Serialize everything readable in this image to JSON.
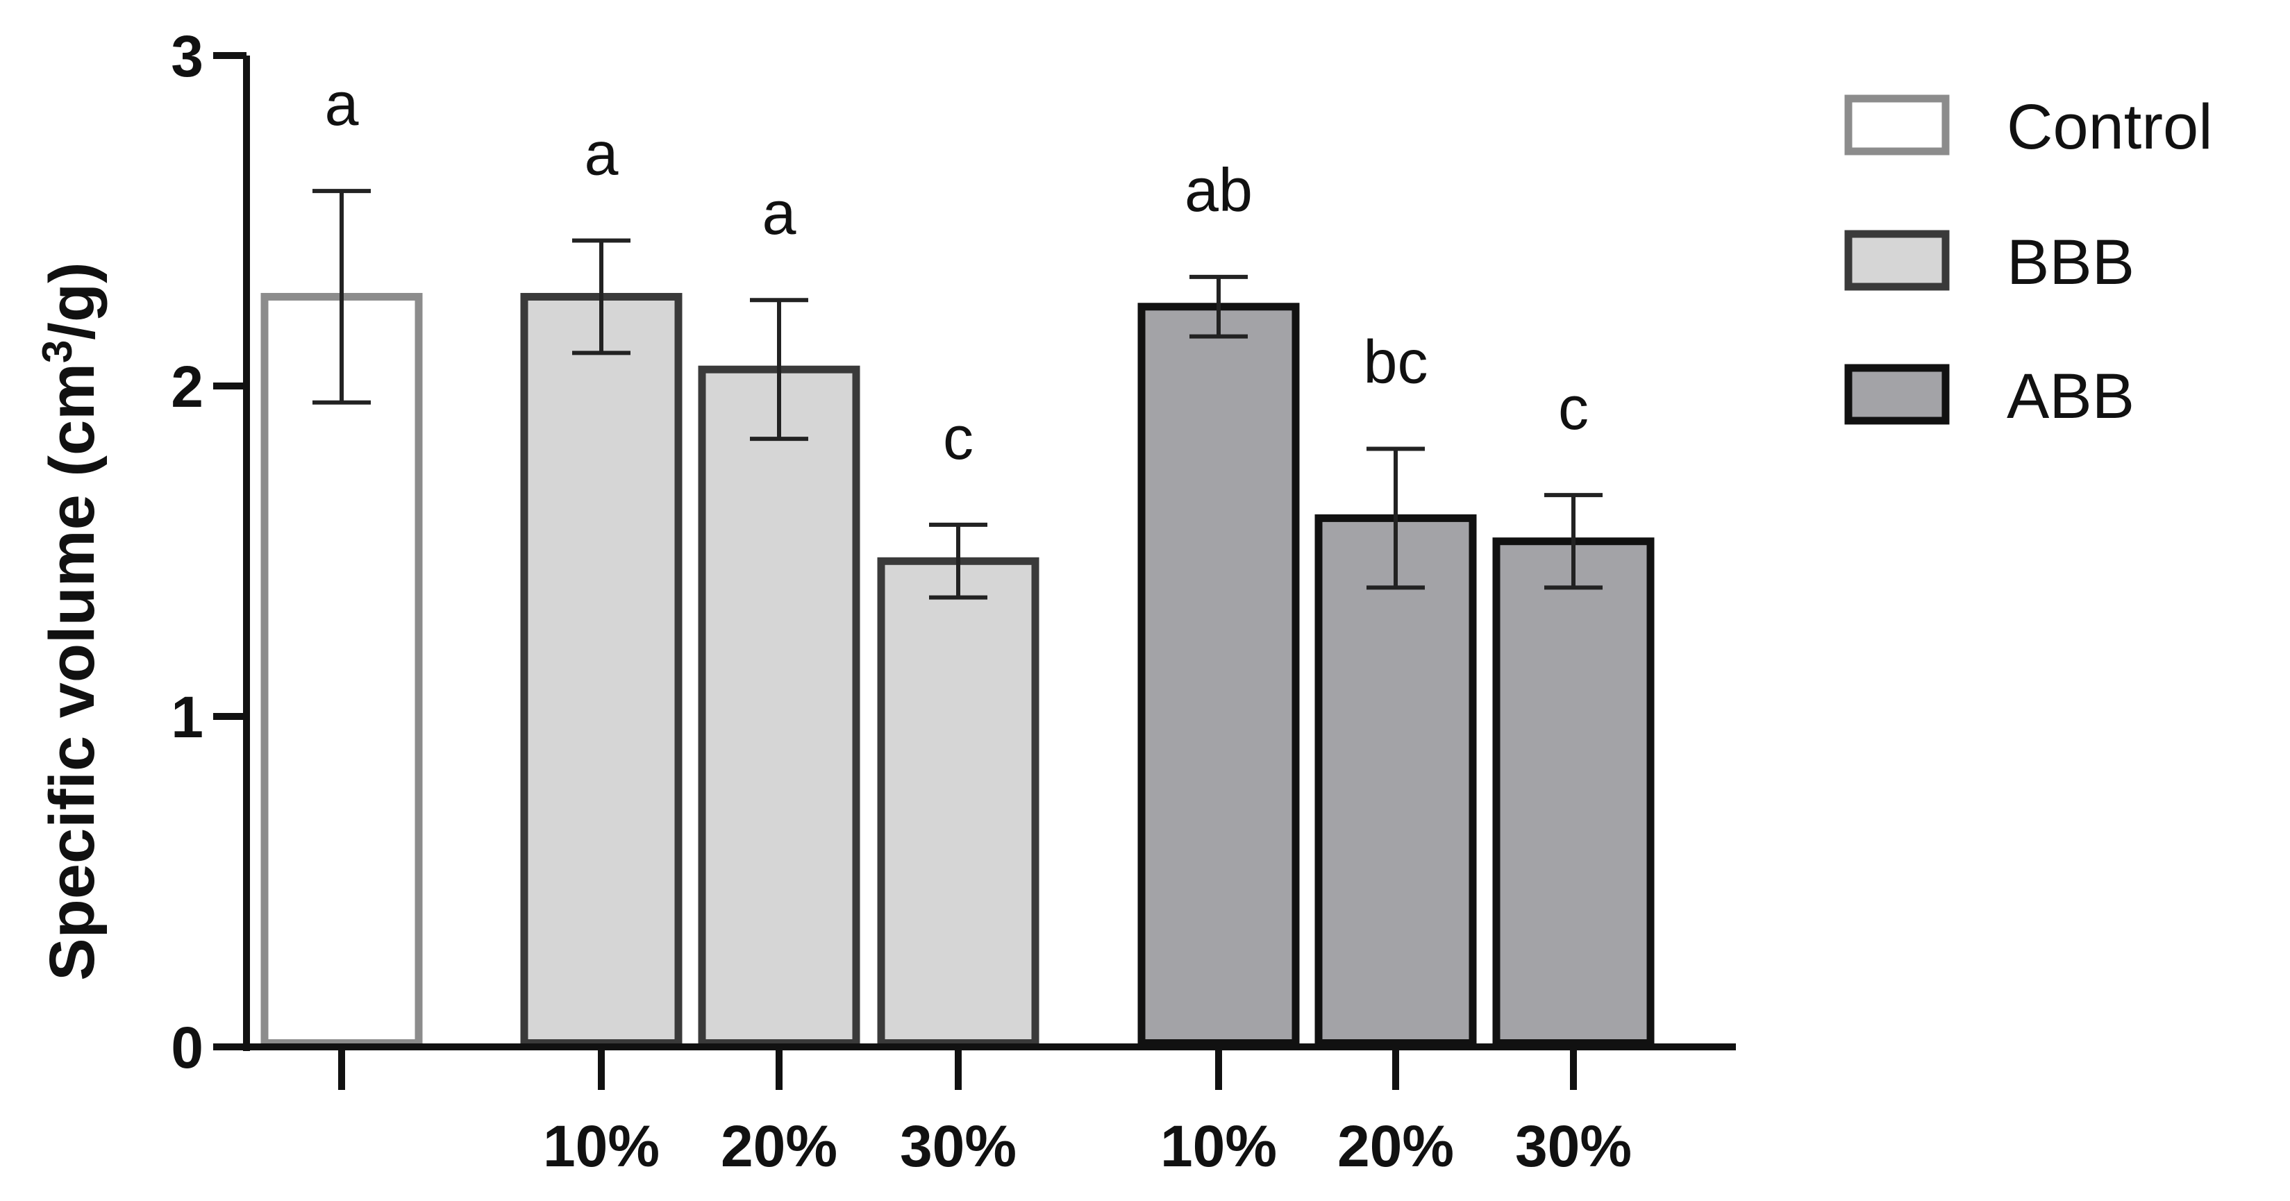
{
  "chart_data": {
    "type": "bar",
    "title": "",
    "xlabel": "",
    "ylabel": {
      "prefix": "Specific volume (cm",
      "sup": "3",
      "suffix": "/g)"
    },
    "ylim": [
      0,
      3
    ],
    "yticks": [
      "0",
      "1",
      "2",
      "3"
    ],
    "groups": [
      {
        "name": "Control",
        "color": "#ffffff",
        "stroke": "#8c8c8c",
        "bars": [
          {
            "label": "",
            "value": 2.27,
            "error": 0.32,
            "sig": "a"
          }
        ]
      },
      {
        "name": "BBB",
        "color": "#d6d6d6",
        "stroke": "#3a3a3a",
        "bars": [
          {
            "label": "10%",
            "value": 2.27,
            "error": 0.17,
            "sig": "a"
          },
          {
            "label": "20%",
            "value": 2.05,
            "error": 0.21,
            "sig": "a"
          },
          {
            "label": "30%",
            "value": 1.47,
            "error": 0.11,
            "sig": "c"
          }
        ]
      },
      {
        "name": "ABB",
        "color": "#a3a3a7",
        "stroke": "#111111",
        "bars": [
          {
            "label": "10%",
            "value": 2.24,
            "error": 0.09,
            "sig": "ab"
          },
          {
            "label": "20%",
            "value": 1.6,
            "error": 0.21,
            "sig": "bc"
          },
          {
            "label": "30%",
            "value": 1.53,
            "error": 0.14,
            "sig": "c"
          }
        ]
      }
    ],
    "legend": {
      "position": "top-right",
      "entries": [
        "Control",
        "BBB",
        "ABB"
      ]
    }
  }
}
